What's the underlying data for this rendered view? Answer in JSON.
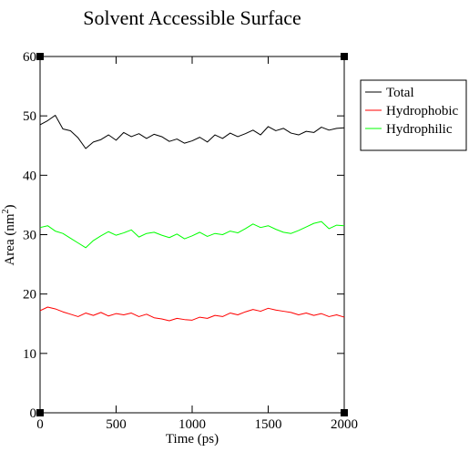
{
  "chart_data": {
    "type": "line",
    "title": "Solvent Accessible Surface",
    "xlabel": "Time (ps)",
    "ylabel": [
      "Area (nm",
      "2",
      ")"
    ],
    "x": [
      0,
      50,
      100,
      150,
      200,
      250,
      300,
      350,
      400,
      450,
      500,
      550,
      600,
      650,
      700,
      750,
      800,
      850,
      900,
      950,
      1000,
      1050,
      1100,
      1150,
      1200,
      1250,
      1300,
      1350,
      1400,
      1450,
      1500,
      1550,
      1600,
      1650,
      1700,
      1750,
      1800,
      1850,
      1900,
      1950,
      2000
    ],
    "series": [
      {
        "name": "Total",
        "color": "#000000",
        "values": [
          48.5,
          49.2,
          50.1,
          47.8,
          47.5,
          46.3,
          44.5,
          45.6,
          46.0,
          46.8,
          45.9,
          47.2,
          46.5,
          47.0,
          46.2,
          46.9,
          46.5,
          45.7,
          46.1,
          45.4,
          45.8,
          46.4,
          45.6,
          46.8,
          46.2,
          47.1,
          46.5,
          47.0,
          47.6,
          46.8,
          48.2,
          47.5,
          47.9,
          47.1,
          46.8,
          47.4,
          47.2,
          48.1,
          47.6,
          47.9,
          48.0
        ]
      },
      {
        "name": "Hydrophobic",
        "color": "#ff0000",
        "values": [
          17.2,
          17.8,
          17.5,
          17.0,
          16.6,
          16.2,
          16.8,
          16.4,
          16.9,
          16.3,
          16.7,
          16.5,
          16.8,
          16.2,
          16.6,
          16.0,
          15.8,
          15.5,
          15.9,
          15.7,
          15.6,
          16.1,
          15.9,
          16.4,
          16.2,
          16.8,
          16.5,
          17.0,
          17.4,
          17.1,
          17.6,
          17.3,
          17.1,
          16.9,
          16.5,
          16.8,
          16.4,
          16.7,
          16.2,
          16.5,
          16.1
        ]
      },
      {
        "name": "Hydrophilic",
        "color": "#00ff00",
        "values": [
          31.2,
          31.5,
          30.6,
          30.2,
          29.4,
          28.6,
          27.8,
          29.0,
          29.8,
          30.5,
          29.9,
          30.3,
          30.8,
          29.6,
          30.2,
          30.4,
          29.9,
          29.5,
          30.1,
          29.3,
          29.8,
          30.4,
          29.7,
          30.2,
          30.0,
          30.6,
          30.3,
          31.0,
          31.8,
          31.2,
          31.5,
          30.9,
          30.4,
          30.2,
          30.7,
          31.3,
          31.9,
          32.2,
          31.0,
          31.6,
          31.5
        ]
      }
    ],
    "xlim": [
      0,
      2000
    ],
    "xticks": [
      0,
      500,
      1000,
      1500,
      2000
    ],
    "ylim": [
      0,
      60
    ],
    "yticks": [
      0,
      10,
      20,
      30,
      40,
      50,
      60
    ],
    "legend": "upper right outside"
  }
}
